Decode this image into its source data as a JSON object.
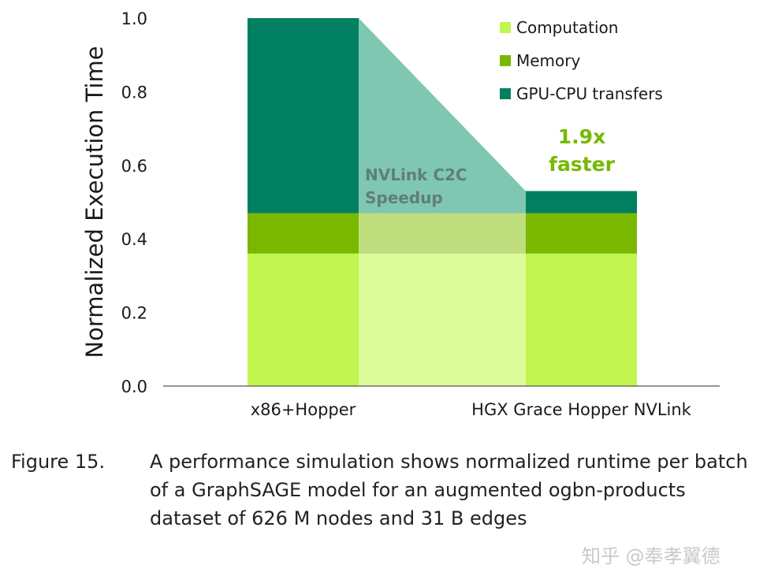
{
  "chart_data": {
    "type": "bar",
    "stacked": true,
    "categories": [
      "x86+Hopper",
      "HGX Grace Hopper NVLink"
    ],
    "series": [
      {
        "name": "Computation",
        "color": "#c2f54f",
        "values": [
          0.36,
          0.36
        ]
      },
      {
        "name": "Memory",
        "color": "#7ab800",
        "values": [
          0.11,
          0.11
        ]
      },
      {
        "name": "GPU-CPU transfers",
        "color": "#008060",
        "values": [
          0.53,
          0.06
        ]
      }
    ],
    "ylabel": "Normalized Execution Time",
    "xlabel": "",
    "ylim": [
      0,
      1.0
    ],
    "yticks": [
      "0.0",
      "0.2",
      "0.4",
      "0.6",
      "0.8",
      "1.0"
    ],
    "legend_position": "top-right",
    "annotations": {
      "speedup_label_line1": "NVLink C2C",
      "speedup_label_line2": "Speedup",
      "faster_line1": "1.9x",
      "faster_line2": "faster"
    }
  },
  "caption": {
    "figure": "Figure 15.",
    "text": "A performance simulation shows normalized runtime per batch of a GraphSAGE model for an augmented ogbn-products dataset of 626 M nodes and 31 B edges"
  },
  "watermark": "知乎 @奉孝翼德"
}
